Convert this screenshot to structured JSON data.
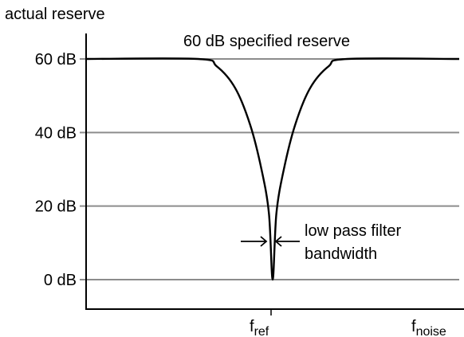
{
  "chart_data": {
    "type": "line",
    "ylabel": "actual reserve",
    "y_ticks": [
      {
        "value": 60,
        "label": "60 dB"
      },
      {
        "value": 40,
        "label": "40 dB"
      },
      {
        "value": 20,
        "label": "20 dB"
      },
      {
        "value": 0,
        "label": "0 dB"
      }
    ],
    "ylim": [
      -8,
      75
    ],
    "grid": true,
    "x_ticks": [
      {
        "base": "f",
        "sub": "ref"
      },
      {
        "base": "f",
        "sub": "noise"
      }
    ],
    "series": [
      {
        "points": [
          [
            0.0,
            60
          ],
          [
            0.3,
            60
          ],
          [
            0.35,
            58
          ],
          [
            0.4,
            52
          ],
          [
            0.44,
            42
          ],
          [
            0.47,
            30
          ],
          [
            0.49,
            18
          ],
          [
            0.5,
            0
          ],
          [
            0.51,
            18
          ],
          [
            0.53,
            30
          ],
          [
            0.56,
            42
          ],
          [
            0.6,
            52
          ],
          [
            0.65,
            58
          ],
          [
            0.7,
            60
          ],
          [
            1.0,
            60
          ]
        ]
      }
    ],
    "annotations": {
      "reserve_label": "60 dB specified reserve",
      "bandwidth_line1": "low pass filter",
      "bandwidth_line2": "bandwidth"
    }
  }
}
